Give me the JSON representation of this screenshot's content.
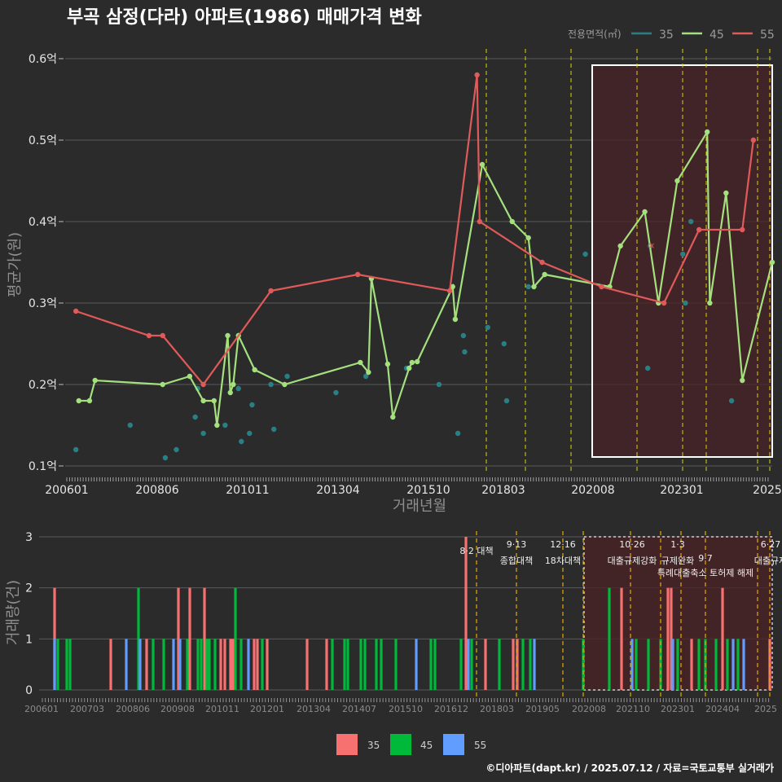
{
  "header": {
    "title": "부곡 삼정(다라) 아파트(1986) 매매가격 변화",
    "legend_title": "전용면적(㎡)",
    "legend_items": [
      {
        "label": "35",
        "color": "#2a7f84"
      },
      {
        "label": "45",
        "color": "#a4e07e"
      },
      {
        "label": "55",
        "color": "#e05a5a"
      }
    ]
  },
  "chart_data": [
    {
      "type": "line",
      "ylabel": "평균가(원)",
      "xlabel": "거래년월",
      "x_ticks": [
        "200601",
        "200806",
        "201011",
        "201304",
        "201510",
        "201803",
        "202008",
        "202301",
        "2025"
      ],
      "y_ticks": [
        "0.1억",
        "0.2억",
        "0.3억",
        "0.4억",
        "0.5억",
        "0.6억"
      ],
      "ylim": [
        0.1,
        0.6
      ],
      "series": [
        {
          "name": "35",
          "color": "#2a7f84",
          "points": [
            {
              "x": "2006.33",
              "y": 0.12
            },
            {
              "x": "2008.0",
              "y": 0.15
            },
            {
              "x": "2009.08",
              "y": 0.11
            },
            {
              "x": "2009.42",
              "y": 0.12
            },
            {
              "x": "2010.0",
              "y": 0.16
            },
            {
              "x": "2010.08",
              "y": 0.195
            },
            {
              "x": "2010.25",
              "y": 0.14
            },
            {
              "x": "2010.92",
              "y": 0.15
            },
            {
              "x": "2011.33",
              "y": 0.195
            },
            {
              "x": "2011.42",
              "y": 0.13
            },
            {
              "x": "2011.67",
              "y": 0.14
            },
            {
              "x": "2011.75",
              "y": 0.175
            },
            {
              "x": "2012.33",
              "y": 0.2
            },
            {
              "x": "2012.42",
              "y": 0.145
            },
            {
              "x": "2012.83",
              "y": 0.21
            },
            {
              "x": "2014.33",
              "y": 0.19
            },
            {
              "x": "2015.25",
              "y": 0.21
            },
            {
              "x": "2016.5",
              "y": 0.22
            },
            {
              "x": "2017.5",
              "y": 0.2
            },
            {
              "x": "2018.08",
              "y": 0.14
            },
            {
              "x": "2018.25",
              "y": 0.26
            },
            {
              "x": "2018.29",
              "y": 0.24
            },
            {
              "x": "2019.0",
              "y": 0.27
            },
            {
              "x": "2019.5",
              "y": 0.25
            },
            {
              "x": "2019.58",
              "y": 0.18
            },
            {
              "x": "2020.25",
              "y": 0.32
            },
            {
              "x": "2022.0",
              "y": 0.36
            },
            {
              "x": "2023.92",
              "y": 0.22
            },
            {
              "x": "2024.0",
              "y": 0.37
            },
            {
              "x": "2025.0",
              "y": 0.36
            },
            {
              "x": "2025.08",
              "y": 0.3
            },
            {
              "x": "2025.25",
              "y": 0.4
            },
            {
              "x": "2026.5",
              "y": 0.18
            }
          ]
        },
        {
          "name": "45",
          "color": "#a4e07e",
          "points": [
            {
              "x": "2006.42",
              "y": 0.18
            },
            {
              "x": "2006.75",
              "y": 0.18
            },
            {
              "x": "2006.92",
              "y": 0.205
            },
            {
              "x": "2009.0",
              "y": 0.2
            },
            {
              "x": "2009.83",
              "y": 0.21
            },
            {
              "x": "2010.25",
              "y": 0.18
            },
            {
              "x": "2010.58",
              "y": 0.18
            },
            {
              "x": "2010.67",
              "y": 0.15
            },
            {
              "x": "2011.0",
              "y": 0.26
            },
            {
              "x": "2011.08",
              "y": 0.19
            },
            {
              "x": "2011.17",
              "y": 0.2
            },
            {
              "x": "2011.33",
              "y": 0.26
            },
            {
              "x": "2011.83",
              "y": 0.218
            },
            {
              "x": "2012.75",
              "y": 0.2
            },
            {
              "x": "2015.08",
              "y": 0.227
            },
            {
              "x": "2015.33",
              "y": 0.215
            },
            {
              "x": "2015.42",
              "y": 0.33
            },
            {
              "x": "2015.92",
              "y": 0.225
            },
            {
              "x": "2016.08",
              "y": 0.16
            },
            {
              "x": "2016.58",
              "y": 0.22
            },
            {
              "x": "2016.67",
              "y": 0.227
            },
            {
              "x": "2016.83",
              "y": 0.228
            },
            {
              "x": "2017.92",
              "y": 0.32
            },
            {
              "x": "2018.0",
              "y": 0.28
            },
            {
              "x": "2018.83",
              "y": 0.47
            },
            {
              "x": "2019.75",
              "y": 0.4
            },
            {
              "x": "2020.25",
              "y": 0.38
            },
            {
              "x": "2020.42",
              "y": 0.32
            },
            {
              "x": "2020.75",
              "y": 0.335
            },
            {
              "x": "2022.75",
              "y": 0.32
            },
            {
              "x": "2023.08",
              "y": 0.37
            },
            {
              "x": "2023.83",
              "y": 0.412
            },
            {
              "x": "2024.25",
              "y": 0.3
            },
            {
              "x": "2024.83",
              "y": 0.45
            },
            {
              "x": "2025.75",
              "y": 0.51
            },
            {
              "x": "2025.83",
              "y": 0.3
            },
            {
              "x": "2026.33",
              "y": 0.435
            },
            {
              "x": "2026.83",
              "y": 0.205
            },
            {
              "x": "2027.75",
              "y": 0.35
            }
          ]
        },
        {
          "name": "55",
          "color": "#e05a5a",
          "points": [
            {
              "x": "2006.33",
              "y": 0.29
            },
            {
              "x": "2008.58",
              "y": 0.26
            },
            {
              "x": "2009.0",
              "y": 0.26
            },
            {
              "x": "2010.25",
              "y": 0.2
            },
            {
              "x": "2012.33",
              "y": 0.315
            },
            {
              "x": "2015.0",
              "y": 0.335
            },
            {
              "x": "2017.83",
              "y": 0.315
            },
            {
              "x": "2018.67",
              "y": 0.58
            },
            {
              "x": "2018.75",
              "y": 0.4
            },
            {
              "x": "2020.67",
              "y": 0.35
            },
            {
              "x": "2022.5",
              "y": 0.32
            },
            {
              "x": "2024.42",
              "y": 0.3
            },
            {
              "x": "2025.5",
              "y": 0.39
            },
            {
              "x": "2026.83",
              "y": 0.39
            },
            {
              "x": "2027.17",
              "y": 0.5
            }
          ]
        }
      ]
    },
    {
      "type": "bar",
      "ylabel": "거래량(건)",
      "x_ticks": [
        "200601",
        "200703",
        "200806",
        "200908",
        "201011",
        "201201",
        "201304",
        "201407",
        "201510",
        "201612",
        "201803",
        "201905",
        "202008",
        "202110",
        "202301",
        "202404",
        "2025"
      ],
      "y_ticks": [
        "0",
        "1",
        "2",
        "3"
      ],
      "ylim": [
        0,
        3
      ],
      "legend": [
        {
          "label": "35",
          "color": "#f87171"
        },
        {
          "label": "45",
          "color": "#00b93b"
        },
        {
          "label": "55",
          "color": "#619cff"
        }
      ],
      "policies": [
        {
          "date": "8·2 대책",
          "label": ""
        },
        {
          "date": "9·13",
          "label": "종합대책"
        },
        {
          "date": "12·16",
          "label": "18차대책"
        },
        {
          "date": "10·26",
          "label": "대출규제강화"
        },
        {
          "date": "1·3",
          "label": "규제완화"
        },
        {
          "date": "9·7",
          "label": "특례대출축소 토허제 해제"
        },
        {
          "date": "6·27",
          "label": "대출규제"
        }
      ]
    }
  ],
  "footer": {
    "credit": "©디아파트(dapt.kr) / 2025.07.12 / 자료=국토교통부 실거래가"
  }
}
